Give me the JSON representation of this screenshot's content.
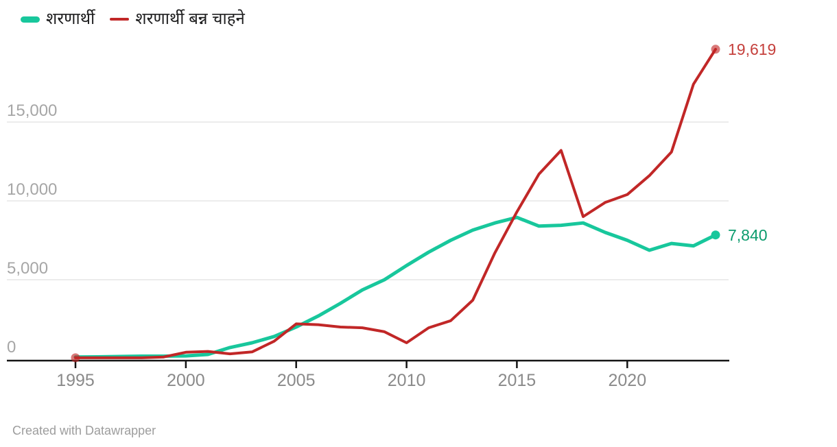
{
  "legend": {
    "items": [
      {
        "label": "शरणार्थी",
        "color": "#18C79C",
        "shape": "thick-line"
      },
      {
        "label": "शरणार्थी बन्न चाहने",
        "color": "#C12727",
        "shape": "thin-line"
      }
    ]
  },
  "chart_data": {
    "type": "line",
    "title": "",
    "x": [
      1995,
      1996,
      1997,
      1998,
      1999,
      2000,
      2001,
      2002,
      2003,
      2004,
      2005,
      2006,
      2007,
      2008,
      2009,
      2010,
      2011,
      2012,
      2013,
      2014,
      2015,
      2016,
      2017,
      2018,
      2019,
      2020,
      2021,
      2022,
      2023,
      2024
    ],
    "series": [
      {
        "name": "शरणार्थी",
        "color": "#18C79C",
        "label_color": "#0B9B6D",
        "end_label": "7,840",
        "end_value": 7840,
        "values": [
          100,
          110,
          130,
          150,
          150,
          170,
          260,
          700,
          1000,
          1400,
          2000,
          2700,
          3500,
          4350,
          5000,
          5900,
          6750,
          7500,
          8150,
          8600,
          8950,
          8400,
          8450,
          8600,
          8000,
          7500,
          6870,
          7300,
          7150,
          7840
        ]
      },
      {
        "name": "शरणार्थी बन्न चाहने",
        "color": "#C12727",
        "label_color": "#C5403C",
        "end_label": "19,619",
        "end_value": 19619,
        "values": [
          48,
          50,
          50,
          50,
          100,
          400,
          450,
          300,
          420,
          1100,
          2200,
          2150,
          2000,
          1950,
          1700,
          1000,
          1950,
          2400,
          3700,
          6700,
          9300,
          11700,
          13200,
          9000,
          9900,
          10400,
          11600,
          13100,
          17400,
          19619
        ]
      }
    ],
    "y_axis": {
      "ticks": [
        0,
        5000,
        10000,
        15000
      ],
      "tick_labels": [
        "0",
        "5,000",
        "10,000",
        "15,000"
      ],
      "range": [
        0,
        19800
      ]
    },
    "x_axis": {
      "ticks": [
        1995,
        2000,
        2005,
        2010,
        2015,
        2020
      ],
      "tick_labels": [
        "1995",
        "2000",
        "2005",
        "2010",
        "2015",
        "2020"
      ],
      "range": [
        1993.5,
        2024.6
      ]
    },
    "grid": true,
    "legend_position": "top-left",
    "colors": {
      "gridline": "#E9E9E9",
      "axis": "#141414",
      "y_tick_label": "#A6A6A6",
      "x_tick_label": "#8A8A8A"
    }
  },
  "footer": {
    "credit": "Created with Datawrapper"
  }
}
